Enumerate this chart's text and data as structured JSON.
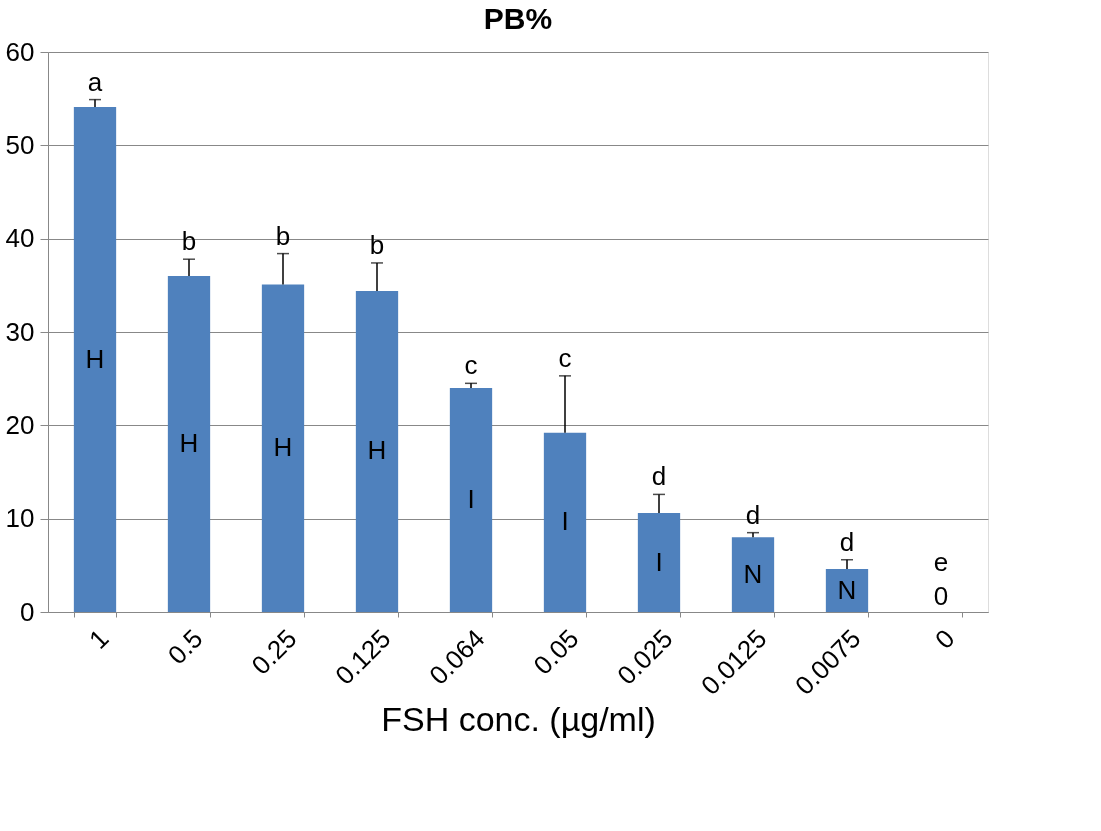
{
  "chart_data": {
    "type": "bar",
    "title": "PB%",
    "xlabel": "FSH conc. (µg/ml)",
    "categories": [
      "1",
      "0.5",
      "0.25",
      "0.125",
      "0.064",
      "0.05",
      "0.025",
      "0.0125",
      "0.0075",
      "0"
    ],
    "series": [
      {
        "color": "#4f81bd",
        "values": [
          54.1,
          36.0,
          35.1,
          34.4,
          24.0,
          19.2,
          10.6,
          8.0,
          4.6,
          0
        ],
        "errors": [
          [
            54.1,
            54.9
          ],
          [
            36.0,
            37.8
          ],
          [
            35.1,
            38.4
          ],
          [
            34.4,
            37.4
          ],
          [
            24.0,
            24.5
          ],
          [
            19.2,
            25.3
          ],
          [
            10.6,
            12.6
          ],
          [
            8.0,
            8.5
          ],
          [
            4.6,
            5.6
          ],
          null
        ]
      }
    ],
    "ylim": [
      0,
      60
    ],
    "yticks": [
      0,
      10,
      20,
      30,
      40,
      50,
      60
    ],
    "grid": "y",
    "annotations": [
      "a",
      "b",
      "b",
      "b",
      "c",
      "c",
      "d",
      "d",
      "d",
      "e",
      "H",
      "H",
      "H",
      "H",
      "I",
      "I",
      "I",
      "N",
      "N",
      "0"
    ]
  }
}
